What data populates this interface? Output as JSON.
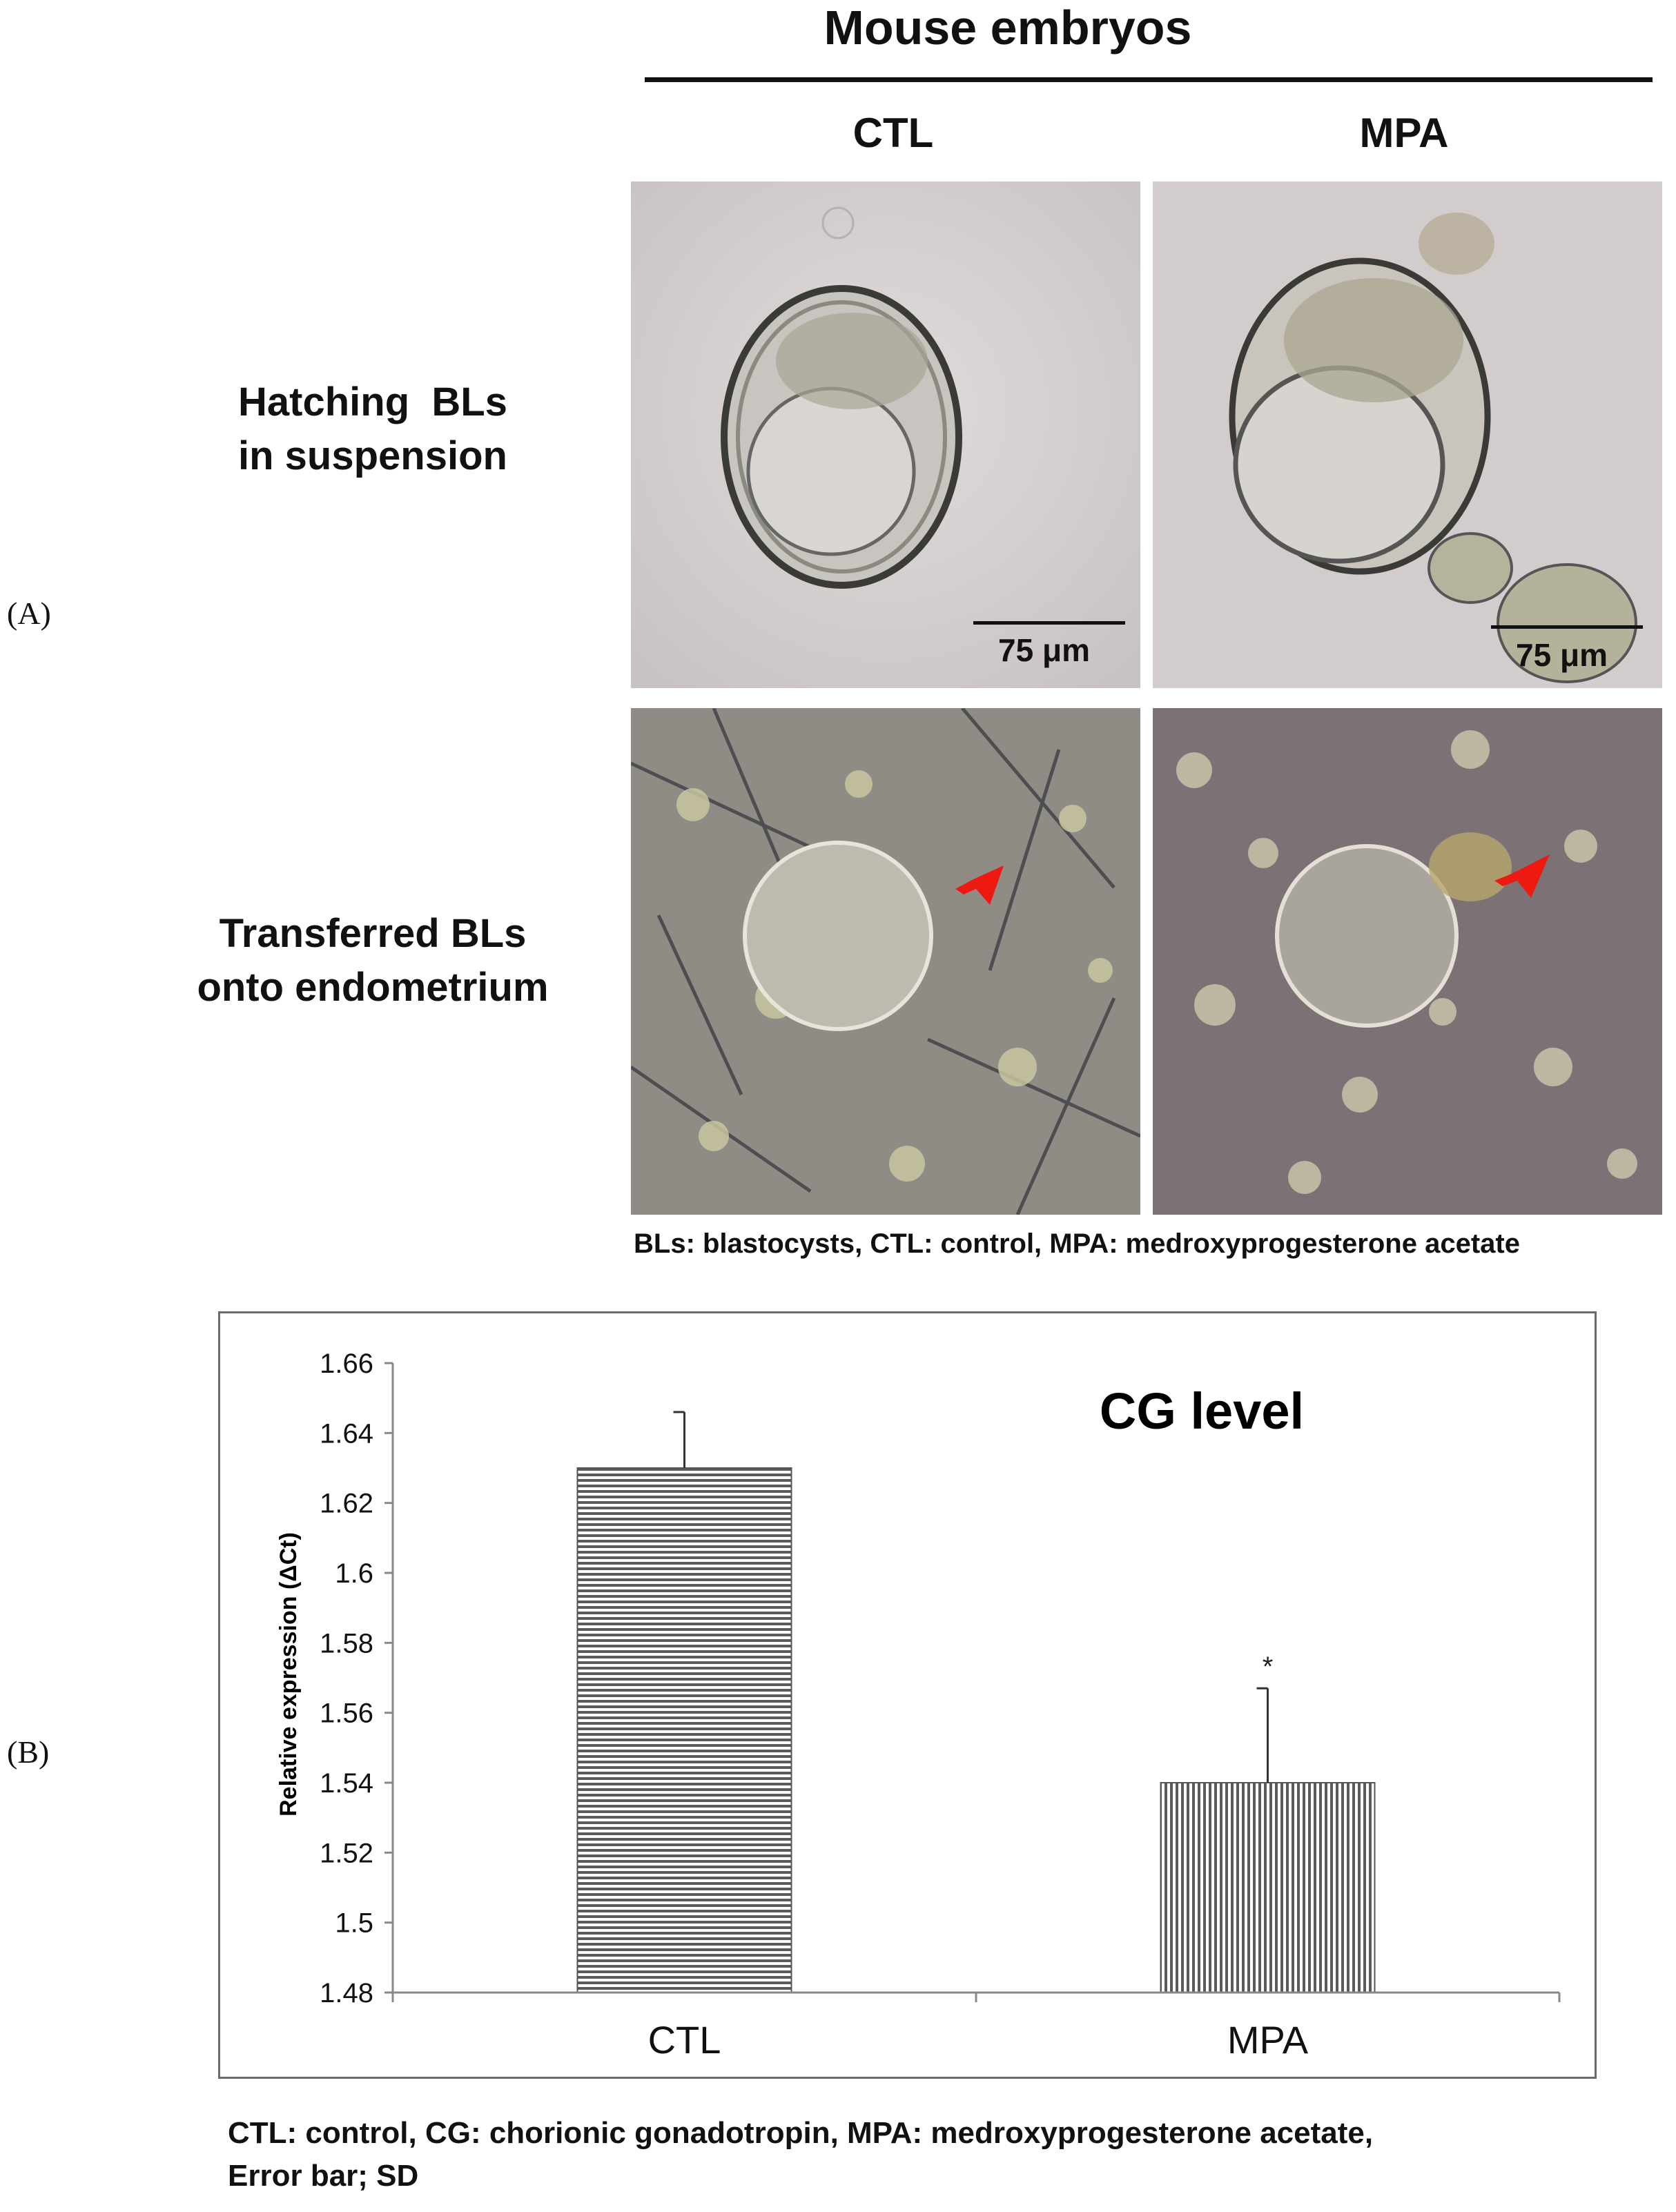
{
  "panel_a": {
    "letter": "(A)",
    "header": "Mouse embryos",
    "columns": [
      "CTL",
      "MPA"
    ],
    "row_labels": [
      "Hatching  BLs\nin suspension",
      "Transferred BLs\nonto endometrium"
    ],
    "scale_bar": "75 μm",
    "caption": "BLs: blastocysts, CTL: control, MPA: medroxyprogesterone acetate"
  },
  "panel_b": {
    "letter": "(B)",
    "caption_line1": "CTL: control, CG: chorionic gonadotropin, MPA: medroxyprogesterone acetate,",
    "caption_line2": "Error bar; SD"
  },
  "chart_data": {
    "type": "bar",
    "title": "CG level",
    "categories": [
      "CTL",
      "MPA"
    ],
    "values": [
      1.63,
      1.54
    ],
    "error": [
      0.016,
      0.027
    ],
    "significance": [
      "",
      "*"
    ],
    "ylabel": "Relative expression (ΔCt)",
    "xlabel": "",
    "ylim": [
      1.48,
      1.66
    ],
    "yticks": [
      "1.48",
      "1.5",
      "1.52",
      "1.54",
      "1.56",
      "1.58",
      "1.6",
      "1.62",
      "1.64",
      "1.66"
    ],
    "grid": false,
    "bar_patterns": [
      "horizontal-hatch",
      "vertical-hatch"
    ],
    "colors": {
      "bar_stroke": "#555555",
      "hatch": "#5a5a5a",
      "axis": "#888888",
      "frame": "#6b6b6b"
    }
  }
}
